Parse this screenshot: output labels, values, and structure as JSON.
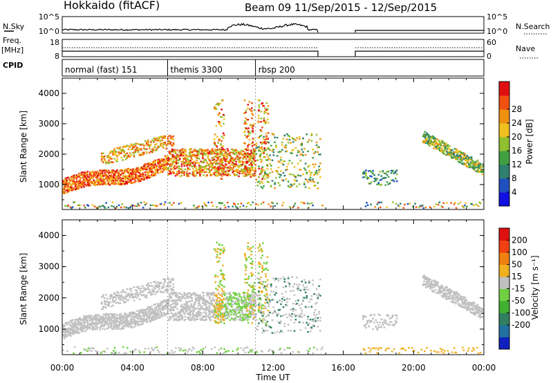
{
  "header": {
    "station": "Hokkaido (fitACF)",
    "beam": "Beam 09",
    "date_range": "11/Sep/2015 - 12/Sep/2015"
  },
  "strip_labels": {
    "nsky": "N.Sky",
    "nsearch": "N.Search",
    "freq_line1": "Freq.",
    "freq_line2": "[MHz]",
    "nave": "Nave",
    "cpid": "CPID"
  },
  "nsky_axis": {
    "left": [
      "10^5",
      "10^0"
    ],
    "right": [
      "10^5",
      "10^0"
    ]
  },
  "freq_axis": {
    "left": [
      "18",
      "8"
    ],
    "right": [
      "60",
      "0"
    ]
  },
  "cpid_modes": [
    {
      "label": "normal (fast) 151",
      "start_hour": 0
    },
    {
      "label": "themis 3300",
      "start_hour": 6
    },
    {
      "label": "rbsp 200",
      "start_hour": 11
    }
  ],
  "chart_data": [
    {
      "type": "heatmap",
      "panel": "power",
      "ylabel": "Slant Range [km]",
      "x_range_hours": [
        0,
        24
      ],
      "ylim_km": [
        180,
        4500
      ],
      "yticks": [
        "1000",
        "2000",
        "3000",
        "4000"
      ],
      "colorbar": {
        "label": "Power [dB]",
        "ticks": [
          "4",
          "8",
          "12",
          "16",
          "20",
          "24",
          "28"
        ],
        "colors": [
          "#1010e0",
          "#2050c0",
          "#308070",
          "#40a040",
          "#90c030",
          "#f0c020",
          "#f09010",
          "#f05010",
          "#e01010"
        ]
      },
      "no_data_gap_hours": [
        14.8,
        17.0
      ]
    },
    {
      "type": "heatmap",
      "panel": "velocity",
      "ylabel": "Slant Range [km]",
      "x_range_hours": [
        0,
        24
      ],
      "ylim_km": [
        180,
        4500
      ],
      "yticks": [
        "1000",
        "2000",
        "3000",
        "4000"
      ],
      "colorbar": {
        "label": "Velocity [m s⁻¹]",
        "ticks": [
          "200",
          "100",
          "50",
          "15",
          "-15",
          "-50",
          "-100",
          "-200"
        ],
        "colors": [
          "#1020c0",
          "#2070a0",
          "#308060",
          "#40b030",
          "#70d040",
          "#c0c0c0",
          "#f0b020",
          "#f08010",
          "#f04010",
          "#e01010"
        ]
      },
      "ground_scatter_color": "#c0c0c0",
      "no_data_gap_hours": [
        14.8,
        17.0
      ]
    }
  ],
  "time_axis": {
    "ticks": [
      "00:00",
      "04:00",
      "08:00",
      "12:00",
      "16:00",
      "20:00",
      "00:00"
    ],
    "label": "Time UT"
  }
}
